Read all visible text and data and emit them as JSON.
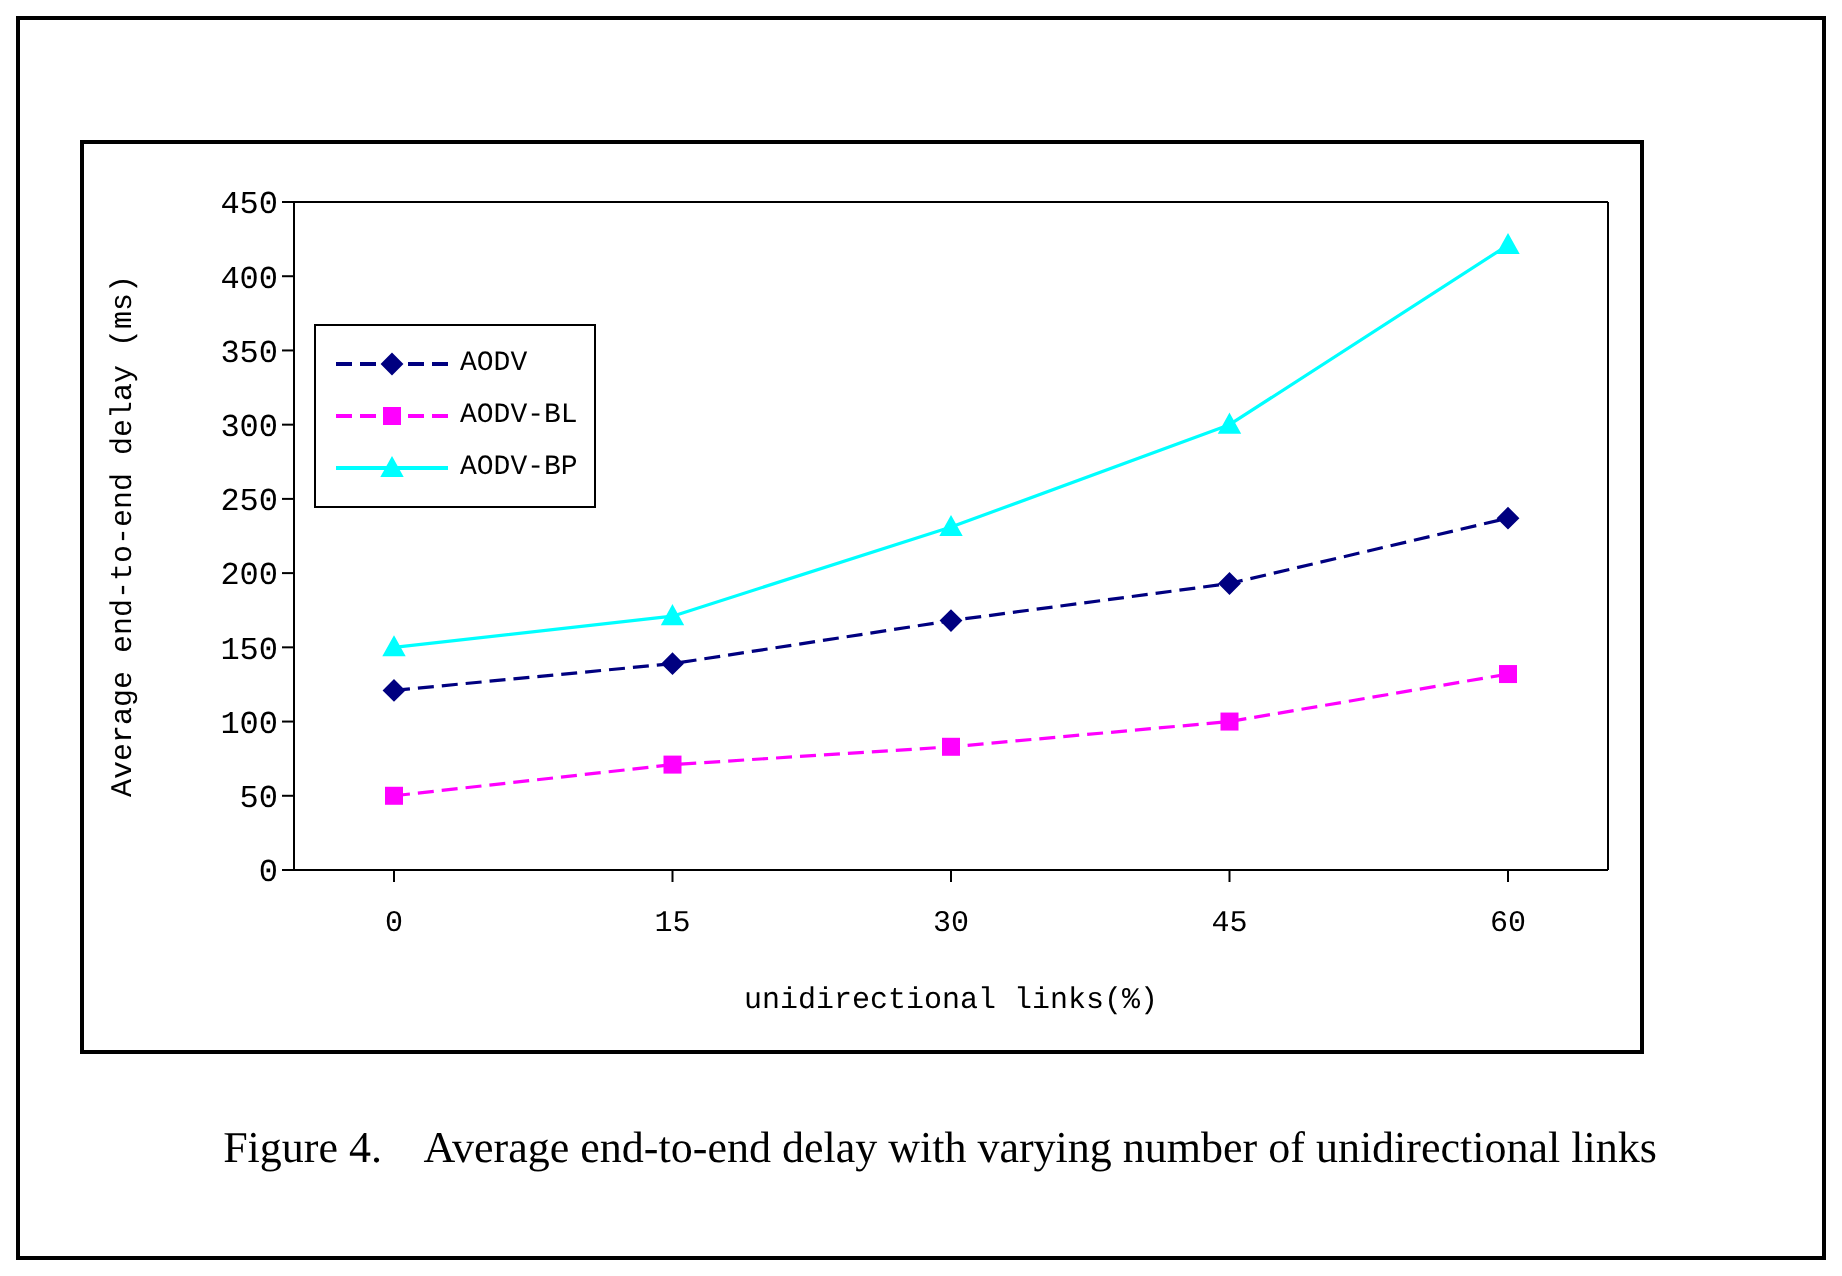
{
  "chart_data": {
    "type": "line",
    "xlabel": "unidirectional links(%)",
    "ylabel": "Average end-to-end delay (ms)",
    "categories": [
      "0",
      "15",
      "30",
      "45",
      "60"
    ],
    "series": [
      {
        "name": "AODV",
        "color": "#000080",
        "values": [
          121,
          139,
          168,
          193,
          237
        ],
        "marker": "diamond",
        "line_style": "dashed"
      },
      {
        "name": "AODV-BL",
        "color": "#ff00ff",
        "values": [
          50,
          71,
          83,
          100,
          132
        ],
        "marker": "square",
        "line_style": "dashed"
      },
      {
        "name": "AODV-BP",
        "color": "#00ffff",
        "values": [
          150,
          171,
          231,
          300,
          421
        ],
        "marker": "triangle",
        "line_style": "solid"
      }
    ],
    "ylim": [
      0,
      450
    ],
    "yticks": [
      0,
      50,
      100,
      150,
      200,
      250,
      300,
      350,
      400,
      450
    ],
    "grid": false,
    "legend": "top left",
    "annotations": [
      "Figure 4.    Average end-to-end delay with varying number of unidirectional links"
    ]
  }
}
